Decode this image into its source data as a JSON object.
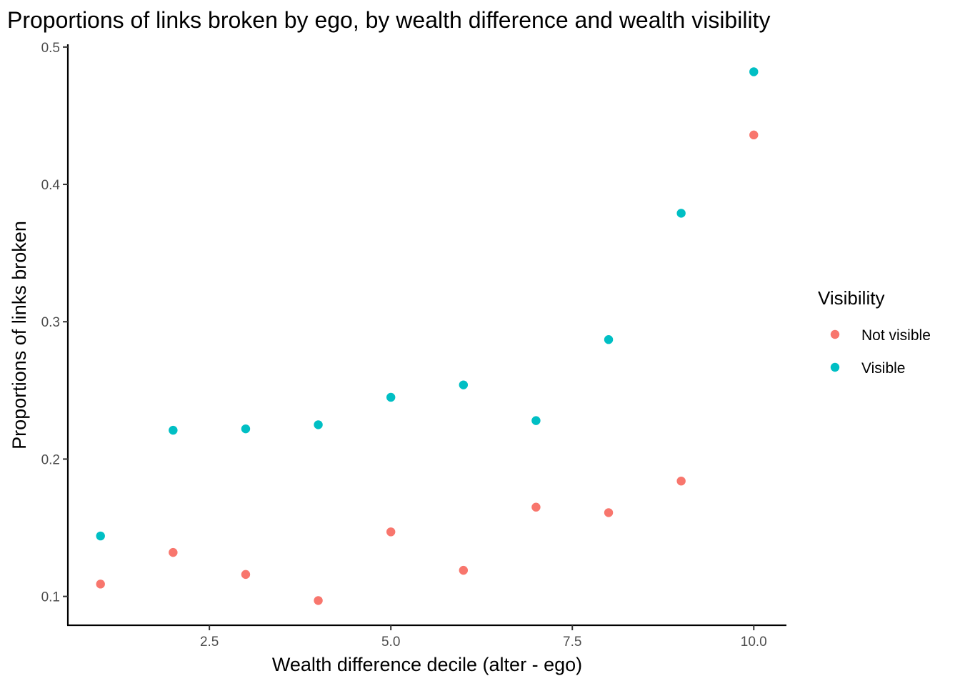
{
  "chart_data": {
    "type": "scatter",
    "title": "Proportions of links broken by ego, by wealth difference and wealth visibility",
    "xlabel": "Wealth difference decile (alter - ego)",
    "ylabel": "Proportions of links broken",
    "xlim": [
      0.55,
      10.45
    ],
    "ylim": [
      0.079,
      0.502
    ],
    "x_ticks": [
      2.5,
      5.0,
      7.5,
      10.0
    ],
    "x_tick_labels": [
      "2.5",
      "5.0",
      "7.5",
      "10.0"
    ],
    "y_ticks": [
      0.1,
      0.2,
      0.3,
      0.4,
      0.5
    ],
    "y_tick_labels": [
      "0.1",
      "0.2",
      "0.3",
      "0.4",
      "0.5"
    ],
    "grid": false,
    "legend": {
      "title": "Visibility",
      "placement": "right"
    },
    "series": [
      {
        "name": "Not visible",
        "color": "#F8766D",
        "x": [
          1,
          2,
          3,
          4,
          5,
          6,
          7,
          8,
          9,
          10
        ],
        "y": [
          0.109,
          0.132,
          0.116,
          0.097,
          0.147,
          0.119,
          0.165,
          0.161,
          0.184,
          0.436
        ]
      },
      {
        "name": "Visible",
        "color": "#00BFC4",
        "x": [
          1,
          2,
          3,
          4,
          5,
          6,
          7,
          8,
          9,
          10
        ],
        "y": [
          0.144,
          0.221,
          0.222,
          0.225,
          0.245,
          0.254,
          0.228,
          0.287,
          0.379,
          0.482
        ]
      }
    ]
  }
}
